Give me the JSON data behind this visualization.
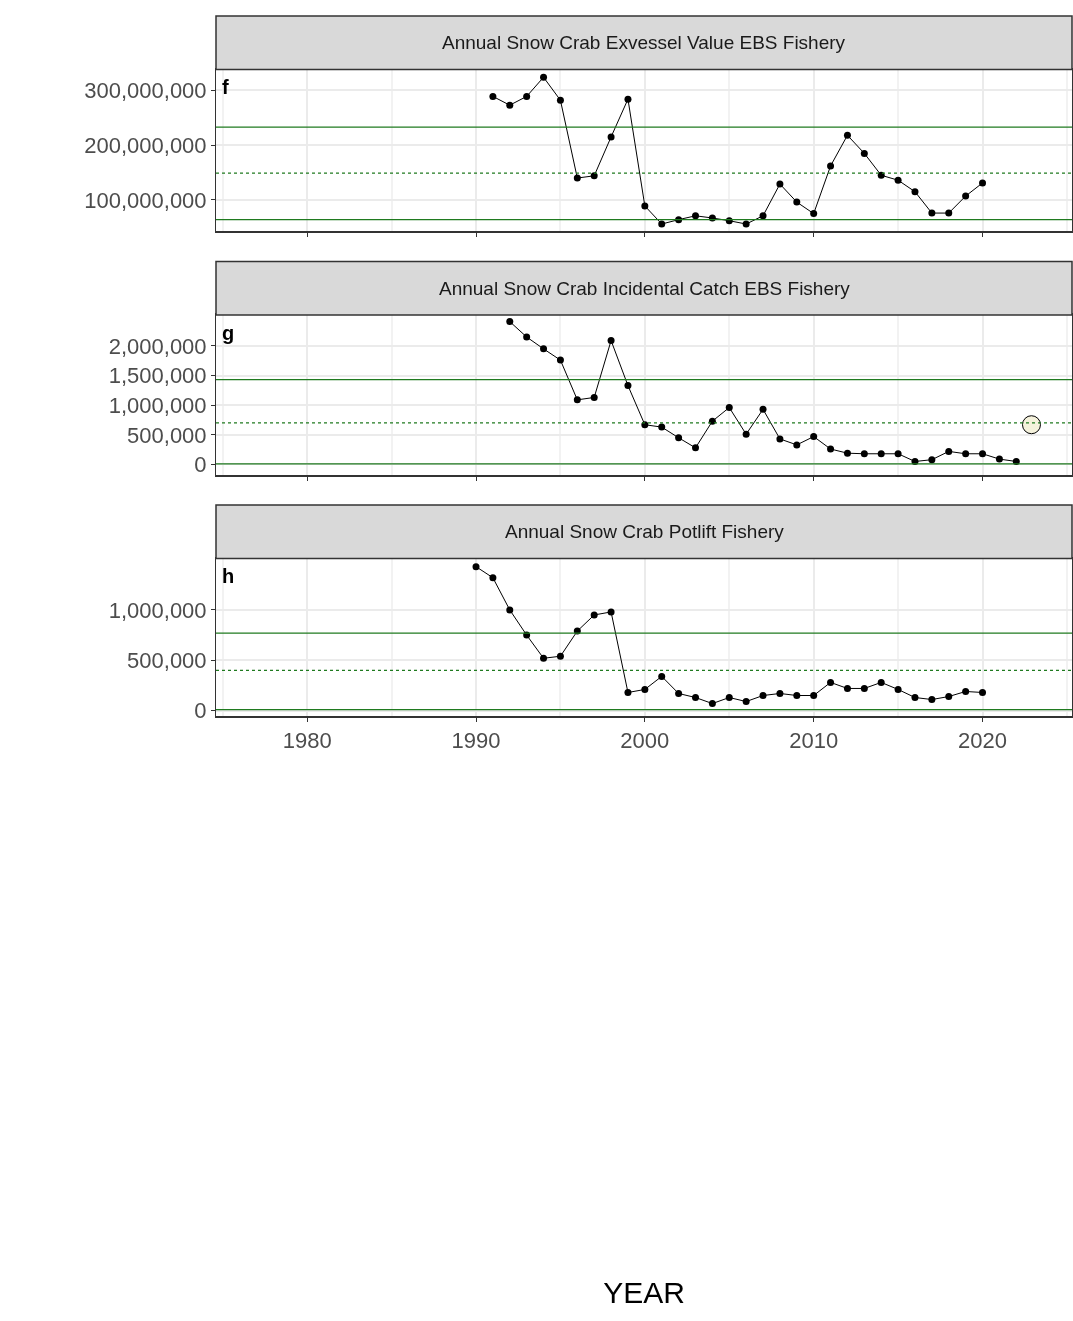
{
  "chart_data": [
    {
      "type": "line",
      "title": "Annual Snow Crab Exvessel Value EBS Fishery",
      "annotations": [
        "f"
      ],
      "tick_labels": "y",
      "grid": true,
      "marker": "circle",
      "line_style": "solid",
      "xlim": [
        1974.6,
        2025.3
      ],
      "xticks": [
        1980,
        1990,
        2000,
        2010,
        2020
      ],
      "ylim": [
        44000000,
        338000000
      ],
      "yticks": [
        {
          "value": 100000000,
          "label": "100,000,000"
        },
        {
          "value": 200000000,
          "label": "200,000,000"
        },
        {
          "value": 300000000,
          "label": "300,000,000"
        }
      ],
      "ref_lines": [
        {
          "axis": "y",
          "value": 233000000,
          "color": "#1f7a1f",
          "line_style": "solid"
        },
        {
          "axis": "y",
          "value": 149000000,
          "color": "#1f7a1f",
          "line_style": "dotted"
        },
        {
          "axis": "y",
          "value": 64000000,
          "color": "#1f7a1f",
          "line_style": "solid"
        }
      ],
      "series": [
        {
          "color": "#000000",
          "x": [
            1991,
            1992,
            1993,
            1994,
            1995,
            1996,
            1997,
            1998,
            1999,
            2000,
            2001,
            2002,
            2003,
            2004,
            2005,
            2006,
            2007,
            2008,
            2009,
            2010,
            2011,
            2012,
            2013,
            2014,
            2015,
            2016,
            2017,
            2018,
            2019,
            2020
          ],
          "values": [
            289000000,
            273000000,
            289000000,
            324000000,
            282000000,
            140000000,
            144000000,
            215000000,
            284000000,
            89000000,
            56000000,
            64000000,
            71000000,
            67000000,
            62000000,
            56000000,
            71000000,
            129000000,
            96000000,
            75000000,
            162000000,
            218000000,
            185000000,
            145000000,
            136000000,
            115000000,
            76000000,
            76000000,
            107000000,
            131000000
          ]
        }
      ]
    },
    {
      "type": "line",
      "title": "Annual Snow Crab Incidental Catch EBS Fishery",
      "annotations": [
        "g"
      ],
      "tick_labels": "y",
      "grid": true,
      "marker": "circle",
      "line_style": "solid",
      "xlim": [
        1974.6,
        2025.3
      ],
      "xticks": [
        1980,
        1990,
        2000,
        2010,
        2020
      ],
      "ylim": [
        -180000,
        2520000
      ],
      "yticks": [
        {
          "value": 0,
          "label": "0"
        },
        {
          "value": 500000,
          "label": "500,000"
        },
        {
          "value": 1000000,
          "label": "1,000,000"
        },
        {
          "value": 1500000,
          "label": "1,500,000"
        },
        {
          "value": 2000000,
          "label": "2,000,000"
        }
      ],
      "ref_lines": [
        {
          "axis": "y",
          "value": 1430000,
          "color": "#1f7a1f",
          "line_style": "solid"
        },
        {
          "axis": "y",
          "value": 700000,
          "color": "#1f7a1f",
          "line_style": "dotted"
        },
        {
          "axis": "y",
          "value": 10000,
          "color": "#1f7a1f",
          "line_style": "solid"
        }
      ],
      "series": [
        {
          "color": "#000000",
          "x": [
            1992,
            1993,
            1994,
            1995,
            1996,
            1997,
            1998,
            1999,
            2000,
            2001,
            2002,
            2003,
            2004,
            2005,
            2006,
            2007,
            2008,
            2009,
            2010,
            2011,
            2012,
            2013,
            2014,
            2015,
            2016,
            2017,
            2018,
            2019,
            2020,
            2021,
            2022
          ],
          "values": [
            2410000,
            2150000,
            1950000,
            1760000,
            1090000,
            1130000,
            2090000,
            1330000,
            670000,
            630000,
            450000,
            280000,
            730000,
            960000,
            510000,
            930000,
            430000,
            330000,
            470000,
            260000,
            190000,
            180000,
            180000,
            180000,
            50000,
            80000,
            220000,
            180000,
            180000,
            90000,
            50000
          ]
        },
        {
          "type": "scatter",
          "color": "#f5f2dc",
          "x": [
            2022.9
          ],
          "values": [
            670000
          ]
        }
      ]
    },
    {
      "type": "line",
      "title": "Annual Snow Crab Potlift Fishery",
      "annotations": [
        "h"
      ],
      "xlabel": "YEAR",
      "grid": true,
      "marker": "circle",
      "line_style": "solid",
      "xlim": [
        1974.6,
        2025.3
      ],
      "xticks": [
        1980,
        1990,
        2000,
        2010,
        2020
      ],
      "ylim": [
        -50000,
        1510000
      ],
      "yticks": [
        {
          "value": 0,
          "label": "0"
        },
        {
          "value": 500000,
          "label": "500,000"
        },
        {
          "value": 1000000,
          "label": "1,000,000"
        }
      ],
      "ref_lines": [
        {
          "axis": "y",
          "value": 770000,
          "color": "#1f7a1f",
          "line_style": "solid"
        },
        {
          "axis": "y",
          "value": 400000,
          "color": "#1f7a1f",
          "line_style": "dotted"
        },
        {
          "axis": "y",
          "value": 10000,
          "color": "#1f7a1f",
          "line_style": "solid"
        }
      ],
      "series": [
        {
          "color": "#000000",
          "x": [
            1990,
            1991,
            1992,
            1993,
            1994,
            1995,
            1996,
            1997,
            1998,
            1999,
            2000,
            2001,
            2002,
            2003,
            2004,
            2005,
            2006,
            2007,
            2008,
            2009,
            2010,
            2011,
            2012,
            2013,
            2014,
            2015,
            2016,
            2017,
            2018,
            2019,
            2020
          ],
          "values": [
            1430000,
            1320000,
            1000000,
            750000,
            520000,
            540000,
            790000,
            950000,
            980000,
            180000,
            210000,
            340000,
            170000,
            130000,
            70000,
            130000,
            90000,
            150000,
            170000,
            150000,
            150000,
            280000,
            220000,
            220000,
            280000,
            210000,
            130000,
            110000,
            140000,
            190000,
            180000
          ]
        }
      ]
    }
  ]
}
